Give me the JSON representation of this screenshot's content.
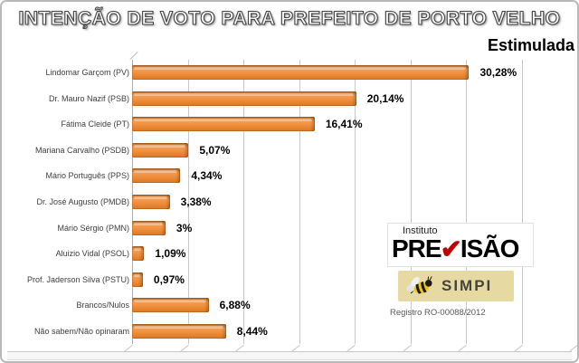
{
  "header": {
    "title": "INTENÇÃO DE VOTO PARA PREFEITO DE PORTO VELHO",
    "subtitle": "Estimulada"
  },
  "chart_data": {
    "type": "bar",
    "orientation": "horizontal",
    "title": "INTENÇÃO DE VOTO PARA PREFEITO DE PORTO VELHO",
    "subtitle": "Estimulada",
    "categories": [
      "Lindomar Garçom (PV)",
      "Dr. Mauro Nazif (PSB)",
      "Fátima Cleide (PT)",
      "Mariana Carvalho (PSDB)",
      "Mário Português (PPS)",
      "Dr. José Augusto (PMDB)",
      "Mário Sérgio (PMN)",
      "Aluizio Vidal (PSOL)",
      "Prof. Jaderson Silva (PSTU)",
      "Brancos/Nulos",
      "Não sabem/Não opinaram"
    ],
    "values": [
      30.28,
      20.14,
      16.41,
      5.07,
      4.34,
      3.38,
      3,
      1.09,
      0.97,
      6.88,
      8.44
    ],
    "value_labels": [
      "30,28%",
      "20,14%",
      "16,41%",
      "5,07%",
      "4,34%",
      "3,38%",
      "3%",
      "1,09%",
      "0,97%",
      "6,88%",
      "8,44%"
    ],
    "xlabel": "",
    "ylabel": "",
    "xlim": [
      0,
      40
    ],
    "gridline_step": 5,
    "grid": true,
    "legend": false,
    "bar_color": "#ED8D3C"
  },
  "logos": {
    "previsao": {
      "line1": "Instituto",
      "pre": "PRE",
      "suffix": "ISÃO",
      "check_color": "#C00000"
    },
    "simpi": {
      "label": "SIMPI",
      "bg_color": "#E7D9A2",
      "bee_yellow": "#F2C411"
    },
    "registro": "Registro  RO-00088/2012"
  }
}
